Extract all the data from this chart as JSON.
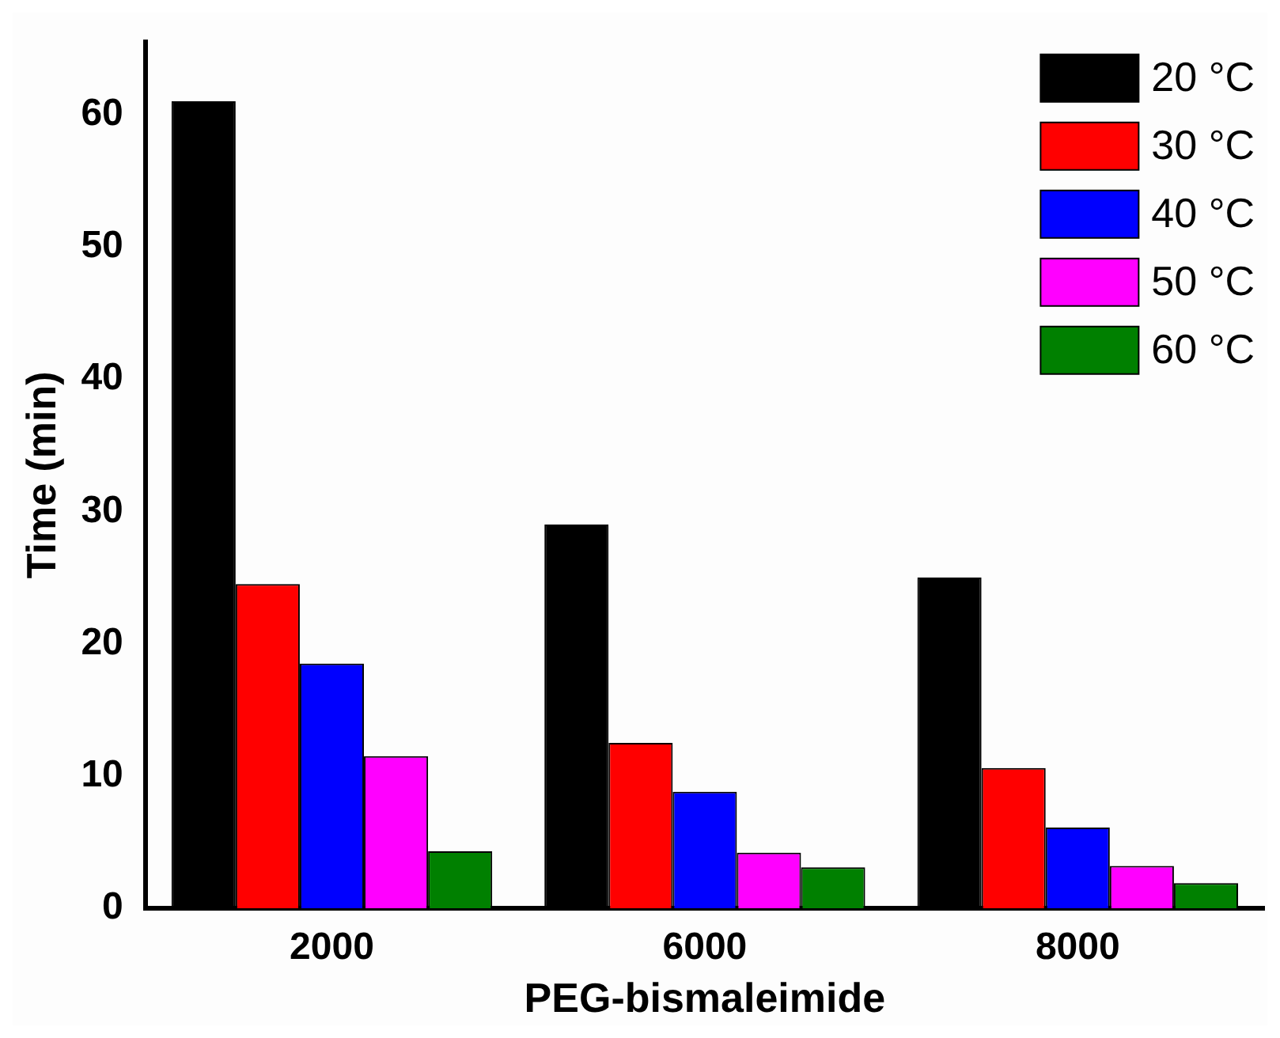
{
  "chart_data": {
    "type": "bar",
    "xlabel": "PEG-bismaleimide",
    "ylabel": "Time (min)",
    "categories": [
      "2000",
      "6000",
      "8000"
    ],
    "series": [
      {
        "name": "20 °C",
        "color": "#000000",
        "values": [
          61,
          29,
          25
        ]
      },
      {
        "name": "30 °C",
        "color": "#ff0000",
        "values": [
          24.5,
          12.5,
          10.6
        ]
      },
      {
        "name": "40 °C",
        "color": "#0000ff",
        "values": [
          18.5,
          8.8,
          6.1
        ]
      },
      {
        "name": "50 °C",
        "color": "#ff00ff",
        "values": [
          11.5,
          4.2,
          3.2
        ]
      },
      {
        "name": "60 °C",
        "color": "#008000",
        "values": [
          4.3,
          3.1,
          1.9
        ]
      }
    ],
    "ylim": [
      0,
      65.5
    ],
    "yticks": [
      0,
      10,
      20,
      30,
      40,
      50,
      60
    ],
    "legend": "top right"
  }
}
